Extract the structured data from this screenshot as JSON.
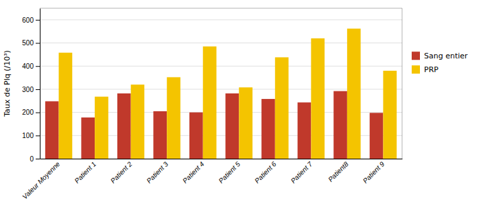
{
  "chart_data": {
    "type": "bar",
    "categories": [
      "Valeur Moyenne",
      "Patient 1",
      "Patient 2",
      "Patient 3",
      "Patient 4",
      "Patient 5",
      "Patient 6",
      "Patient 7",
      "Patient8",
      "Patient 9"
    ],
    "series": [
      {
        "name": "Sang entier",
        "color": "#C0392B",
        "values": [
          248,
          178,
          282,
          205,
          200,
          282,
          258,
          243,
          292,
          198
        ]
      },
      {
        "name": "PRP",
        "color": "#F4C400",
        "values": [
          458,
          268,
          320,
          352,
          485,
          308,
          438,
          520,
          562,
          380
        ]
      }
    ],
    "ylabel": "Taux de Plq (/10³)",
    "ylim": [
      0,
      650
    ],
    "yticks": [
      0,
      100,
      200,
      300,
      400,
      500,
      600
    ],
    "grid": true,
    "legend": "right"
  }
}
